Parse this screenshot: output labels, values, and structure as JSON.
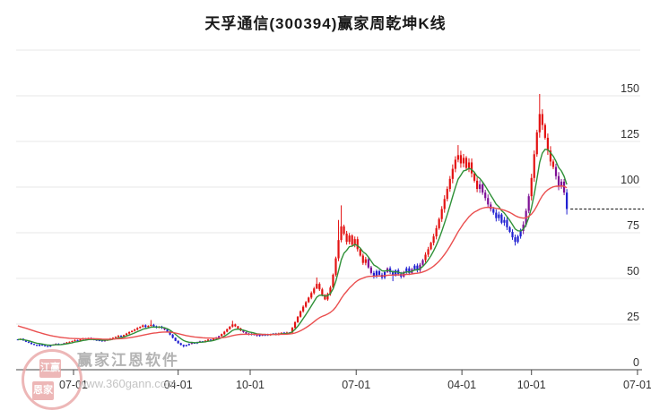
{
  "page": {
    "title": "天孚通信(300394)赢家周乾坤K线"
  },
  "watermark": {
    "stamp_top": "江赢",
    "stamp_bottom": "恩家",
    "brand": "赢家江恩软件",
    "url": "www.360gann.com"
  },
  "colors": {
    "up": "#e31212",
    "down": "#1f1fd1",
    "transition": "#7d1195",
    "ma_fast": "#2f9138",
    "ma_slow": "#ea4f4f",
    "grid": "#e7e7e7",
    "axis": "#444444",
    "label": "#333333",
    "dashed": "#111111"
  },
  "chart_data": {
    "type": "candlestick",
    "title": "天孚通信(300394)赢家周乾坤K线",
    "security_name": "天孚通信",
    "security_code": "300394",
    "chart_kind": "赢家周乾坤K线",
    "x_axis": {
      "tick_labels": [
        "07-01",
        "04-01",
        "10-01",
        "07-01",
        "04-01",
        "10-01",
        "07-01"
      ],
      "tick_candle_index": [
        20.5,
        59,
        85.5,
        124.5,
        163.4,
        189,
        228
      ]
    },
    "y_axis": {
      "tick_values": [
        0,
        25,
        50,
        75,
        100,
        125,
        150
      ],
      "range": [
        0,
        175
      ],
      "grid": true,
      "position": "right"
    },
    "last_close_dashed_level": 88,
    "candle_color_legend": {
      "r": "up-trend",
      "b": "down-trend",
      "p": "transition"
    },
    "candles_format": [
      "close",
      "color"
    ],
    "candles": [
      [
        16.6,
        "b"
      ],
      [
        16.9,
        "r"
      ],
      [
        16.1,
        "b"
      ],
      [
        15.3,
        "b"
      ],
      [
        14.8,
        "b"
      ],
      [
        14.1,
        "b"
      ],
      [
        13.6,
        "b"
      ],
      [
        13.1,
        "b"
      ],
      [
        13.7,
        "b"
      ],
      [
        13.3,
        "b"
      ],
      [
        12.9,
        "b"
      ],
      [
        12.7,
        "b"
      ],
      [
        13.3,
        "b"
      ],
      [
        13.8,
        "p"
      ],
      [
        14.2,
        "p"
      ],
      [
        13.7,
        "b"
      ],
      [
        14.0,
        "b"
      ],
      [
        14.5,
        "p"
      ],
      [
        14.9,
        "r"
      ],
      [
        15.3,
        "r"
      ],
      [
        15.7,
        "r"
      ],
      [
        16.2,
        "r"
      ],
      [
        15.9,
        "b"
      ],
      [
        16.6,
        "r"
      ],
      [
        17.1,
        "r"
      ],
      [
        16.8,
        "b"
      ],
      [
        17.4,
        "r"
      ],
      [
        17.0,
        "p"
      ],
      [
        16.4,
        "b"
      ],
      [
        15.9,
        "b"
      ],
      [
        16.2,
        "b"
      ],
      [
        15.6,
        "b"
      ],
      [
        16.0,
        "p"
      ],
      [
        16.5,
        "r"
      ],
      [
        17.0,
        "r"
      ],
      [
        17.5,
        "r"
      ],
      [
        18.0,
        "r"
      ],
      [
        18.6,
        "r"
      ],
      [
        18.2,
        "b"
      ],
      [
        19.0,
        "r"
      ],
      [
        19.8,
        "r"
      ],
      [
        20.6,
        "r"
      ],
      [
        21.3,
        "r"
      ],
      [
        22.0,
        "r"
      ],
      [
        22.8,
        "r"
      ],
      [
        23.5,
        "r"
      ],
      [
        24.3,
        "r"
      ],
      [
        23.4,
        "b"
      ],
      [
        24.0,
        "r"
      ],
      [
        24.6,
        "r"
      ],
      [
        23.8,
        "b"
      ],
      [
        23.0,
        "b"
      ],
      [
        23.6,
        "r"
      ],
      [
        22.8,
        "b"
      ],
      [
        22.0,
        "p"
      ],
      [
        20.8,
        "b"
      ],
      [
        19.2,
        "b"
      ],
      [
        17.5,
        "b"
      ],
      [
        15.8,
        "b"
      ],
      [
        14.5,
        "b"
      ],
      [
        13.6,
        "b"
      ],
      [
        12.9,
        "b"
      ],
      [
        13.5,
        "b"
      ],
      [
        14.1,
        "b"
      ],
      [
        14.7,
        "p"
      ],
      [
        14.4,
        "b"
      ],
      [
        15.0,
        "b"
      ],
      [
        15.6,
        "p"
      ],
      [
        15.2,
        "b"
      ],
      [
        15.9,
        "r"
      ],
      [
        16.5,
        "r"
      ],
      [
        16.2,
        "b"
      ],
      [
        16.9,
        "r"
      ],
      [
        17.6,
        "p"
      ],
      [
        18.4,
        "p"
      ],
      [
        19.5,
        "r"
      ],
      [
        20.8,
        "r"
      ],
      [
        22.2,
        "r"
      ],
      [
        23.6,
        "r"
      ],
      [
        24.8,
        "r"
      ],
      [
        23.8,
        "r"
      ],
      [
        22.6,
        "r"
      ],
      [
        21.5,
        "r"
      ],
      [
        20.6,
        "p"
      ],
      [
        19.8,
        "p"
      ],
      [
        19.2,
        "p"
      ],
      [
        19.6,
        "b"
      ],
      [
        19.0,
        "b"
      ],
      [
        18.5,
        "p"
      ],
      [
        19.1,
        "b"
      ],
      [
        18.7,
        "p"
      ],
      [
        19.3,
        "b"
      ],
      [
        18.9,
        "b"
      ],
      [
        19.4,
        "r"
      ],
      [
        19.8,
        "b"
      ],
      [
        19.2,
        "p"
      ],
      [
        19.9,
        "r"
      ],
      [
        20.3,
        "r"
      ],
      [
        19.8,
        "b"
      ],
      [
        20.4,
        "r"
      ],
      [
        20.4,
        "p"
      ],
      [
        23.0,
        "r"
      ],
      [
        26.0,
        "r"
      ],
      [
        29.0,
        "r"
      ],
      [
        32.0,
        "r"
      ],
      [
        34.5,
        "r"
      ],
      [
        37.0,
        "r"
      ],
      [
        39.5,
        "r"
      ],
      [
        42.0,
        "r"
      ],
      [
        44.5,
        "r"
      ],
      [
        47.0,
        "r"
      ],
      [
        44.0,
        "r"
      ],
      [
        41.0,
        "r"
      ],
      [
        38.5,
        "r"
      ],
      [
        41.5,
        "r"
      ],
      [
        45.0,
        "r"
      ],
      [
        52.0,
        "r"
      ],
      [
        61.0,
        "r"
      ],
      [
        71.0,
        "r"
      ],
      [
        78.5,
        "r"
      ],
      [
        74.5,
        "r"
      ],
      [
        70.0,
        "r"
      ],
      [
        73.5,
        "r"
      ],
      [
        68.5,
        "r"
      ],
      [
        71.5,
        "r"
      ],
      [
        66.0,
        "r"
      ],
      [
        62.5,
        "r"
      ],
      [
        58.5,
        "r"
      ],
      [
        60.5,
        "r"
      ],
      [
        56.0,
        "p"
      ],
      [
        53.0,
        "p"
      ],
      [
        51.0,
        "b"
      ],
      [
        54.0,
        "b"
      ],
      [
        52.0,
        "b"
      ],
      [
        50.5,
        "b"
      ],
      [
        53.5,
        "b"
      ],
      [
        55.5,
        "p"
      ],
      [
        53.5,
        "b"
      ],
      [
        51.5,
        "b"
      ],
      [
        54.5,
        "b"
      ],
      [
        52.5,
        "b"
      ],
      [
        51.0,
        "b"
      ],
      [
        53.5,
        "p"
      ],
      [
        55.5,
        "b"
      ],
      [
        53.0,
        "b"
      ],
      [
        55.0,
        "p"
      ],
      [
        57.0,
        "b"
      ],
      [
        54.5,
        "b"
      ],
      [
        57.5,
        "p"
      ],
      [
        60.0,
        "p"
      ],
      [
        63.0,
        "r"
      ],
      [
        66.0,
        "r"
      ],
      [
        69.5,
        "r"
      ],
      [
        73.0,
        "r"
      ],
      [
        77.5,
        "r"
      ],
      [
        82.5,
        "r"
      ],
      [
        88.0,
        "r"
      ],
      [
        93.5,
        "r"
      ],
      [
        99.0,
        "r"
      ],
      [
        104.5,
        "r"
      ],
      [
        110.0,
        "r"
      ],
      [
        115.0,
        "r"
      ],
      [
        117.5,
        "r"
      ],
      [
        113.0,
        "r"
      ],
      [
        116.0,
        "r"
      ],
      [
        110.5,
        "r"
      ],
      [
        113.5,
        "r"
      ],
      [
        107.5,
        "r"
      ],
      [
        103.5,
        "r"
      ],
      [
        99.0,
        "r"
      ],
      [
        101.5,
        "p"
      ],
      [
        97.0,
        "p"
      ],
      [
        94.0,
        "p"
      ],
      [
        90.5,
        "p"
      ],
      [
        88.0,
        "p"
      ],
      [
        86.0,
        "b"
      ],
      [
        83.0,
        "b"
      ],
      [
        85.0,
        "b"
      ],
      [
        80.5,
        "b"
      ],
      [
        82.0,
        "b"
      ],
      [
        78.0,
        "b"
      ],
      [
        75.5,
        "b"
      ],
      [
        72.5,
        "b"
      ],
      [
        70.0,
        "b"
      ],
      [
        73.0,
        "b"
      ],
      [
        76.0,
        "b"
      ],
      [
        79.5,
        "p"
      ],
      [
        87.0,
        "p"
      ],
      [
        95.0,
        "p"
      ],
      [
        105.0,
        "r"
      ],
      [
        118.0,
        "r"
      ],
      [
        130.0,
        "r"
      ],
      [
        140.0,
        "r"
      ],
      [
        134.0,
        "r"
      ],
      [
        127.0,
        "r"
      ],
      [
        120.0,
        "r"
      ],
      [
        114.0,
        "r"
      ],
      [
        111.0,
        "r"
      ],
      [
        106.0,
        "p"
      ],
      [
        100.5,
        "p"
      ],
      [
        103.0,
        "p"
      ],
      [
        97.0,
        "p"
      ],
      [
        88.0,
        "b"
      ]
    ],
    "wick_overrides": [
      [
        49,
        "h",
        27.2
      ],
      [
        61,
        "l",
        12.2
      ],
      [
        79,
        "h",
        26.8
      ],
      [
        110,
        "h",
        50.5
      ],
      [
        118,
        "h",
        82
      ],
      [
        119,
        "h",
        90
      ],
      [
        138,
        "l",
        48.5
      ],
      [
        162,
        "h",
        123
      ],
      [
        183,
        "l",
        68
      ],
      [
        192,
        "h",
        151
      ],
      [
        202,
        "l",
        85
      ]
    ],
    "moving_averages": [
      {
        "name": "fast",
        "color": "#2f9138",
        "alpha": 0.25,
        "seed": 16.5
      },
      {
        "name": "slow",
        "color": "#ea4f4f",
        "alpha": 0.06,
        "seed": 24.5
      }
    ]
  }
}
